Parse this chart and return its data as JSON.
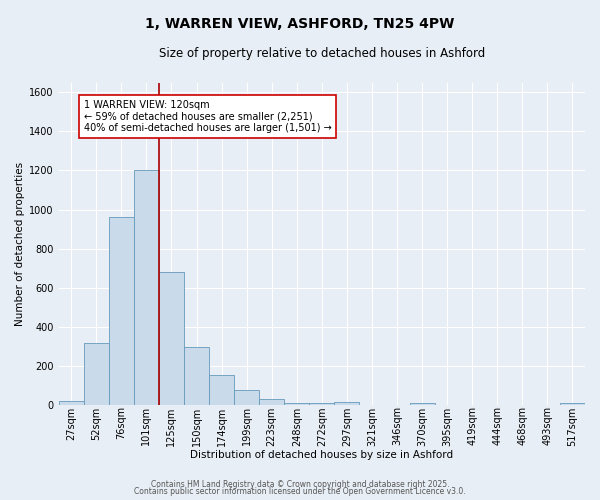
{
  "title_line1": "1, WARREN VIEW, ASHFORD, TN25 4PW",
  "title_line2": "Size of property relative to detached houses in Ashford",
  "xlabel": "Distribution of detached houses by size in Ashford",
  "ylabel": "Number of detached properties",
  "bar_labels": [
    "27sqm",
    "52sqm",
    "76sqm",
    "101sqm",
    "125sqm",
    "150sqm",
    "174sqm",
    "199sqm",
    "223sqm",
    "248sqm",
    "272sqm",
    "297sqm",
    "321sqm",
    "346sqm",
    "370sqm",
    "395sqm",
    "419sqm",
    "444sqm",
    "468sqm",
    "493sqm",
    "517sqm"
  ],
  "bar_values": [
    20,
    315,
    960,
    1200,
    680,
    295,
    155,
    75,
    30,
    10,
    10,
    15,
    0,
    0,
    10,
    0,
    0,
    0,
    0,
    0,
    10
  ],
  "bar_color": "#c9daea",
  "bar_edge_color": "#6699bb",
  "vline_color": "#aa0000",
  "annotation_text": "1 WARREN VIEW: 120sqm\n← 59% of detached houses are smaller (2,251)\n40% of semi-detached houses are larger (1,501) →",
  "annotation_box_facecolor": "#ffffff",
  "annotation_box_edgecolor": "#cc0000",
  "ylim": [
    0,
    1650
  ],
  "yticks": [
    0,
    200,
    400,
    600,
    800,
    1000,
    1200,
    1400,
    1600
  ],
  "footer_line1": "Contains HM Land Registry data © Crown copyright and database right 2025.",
  "footer_line2": "Contains public sector information licensed under the Open Government Licence v3.0.",
  "background_color": "#e8eef5",
  "plot_bg_color": "#e8eef5",
  "grid_color": "#ffffff",
  "title1_fontsize": 10,
  "title2_fontsize": 8.5,
  "axis_label_fontsize": 7.5,
  "tick_fontsize": 7,
  "footer_fontsize": 5.5
}
